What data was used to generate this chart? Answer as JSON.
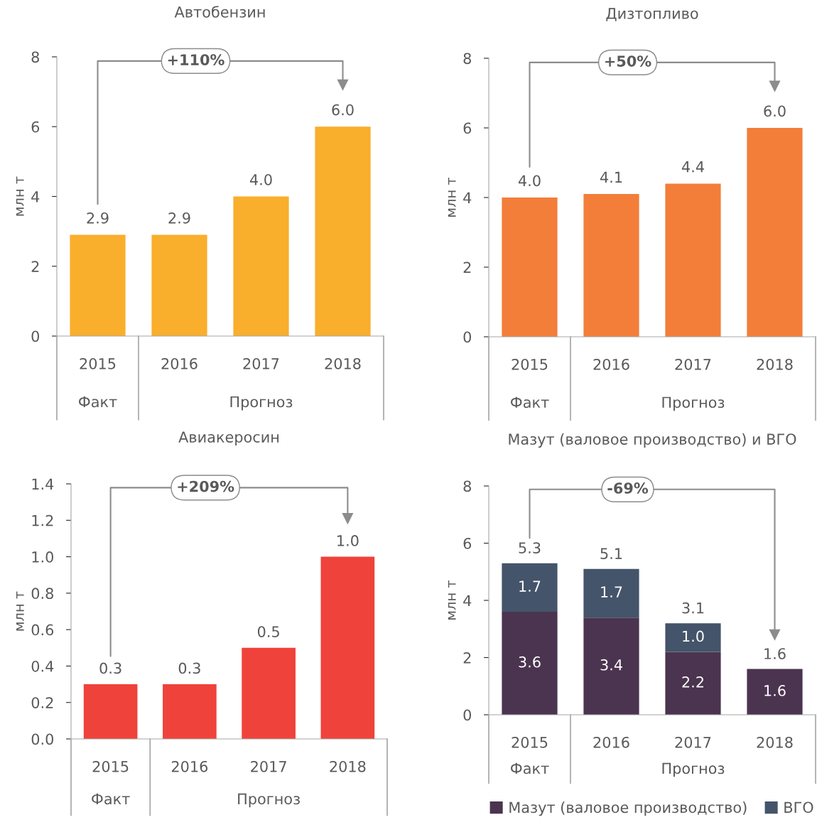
{
  "chart_data": [
    {
      "type": "bar",
      "title": "Автобензин",
      "ylabel": "млн т",
      "categories": [
        "2015",
        "2016",
        "2017",
        "2018"
      ],
      "values": [
        2.9,
        2.9,
        4.0,
        6.0
      ],
      "value_labels": [
        "2.9",
        "2.9",
        "4.0",
        "6.0"
      ],
      "color": "#f9ae2c",
      "ylim": [
        0,
        8
      ],
      "yticks": [
        0,
        2,
        4,
        6,
        8
      ],
      "grid": false,
      "annotations": [
        "+110%",
        "Факт",
        "Прогноз"
      ]
    },
    {
      "type": "bar",
      "title": "Дизтопливо",
      "ylabel": "млн т",
      "categories": [
        "2015",
        "2016",
        "2017",
        "2018"
      ],
      "values": [
        4.0,
        4.1,
        4.4,
        6.0
      ],
      "value_labels": [
        "4.0",
        "4.1",
        "4.4",
        "6.0"
      ],
      "color": "#f27e3a",
      "ylim": [
        0,
        8
      ],
      "yticks": [
        0,
        2,
        4,
        6,
        8
      ],
      "grid": false,
      "annotations": [
        "+50%",
        "Факт",
        "Прогноз"
      ]
    },
    {
      "type": "bar",
      "title": "Авиакеросин",
      "ylabel": "млн т",
      "categories": [
        "2015",
        "2016",
        "2017",
        "2018"
      ],
      "values": [
        0.3,
        0.3,
        0.5,
        1.0
      ],
      "value_labels": [
        "0.3",
        "0.3",
        "0.5",
        "1.0"
      ],
      "color": "#ef423b",
      "ylim": [
        0,
        1.4
      ],
      "yticks": [
        {
          "value": 0,
          "label": "0.0"
        },
        0.2,
        0.4,
        0.6,
        0.8,
        {
          "value": 1,
          "label": "1.0"
        },
        1.2,
        1.4
      ],
      "grid": false,
      "annotations": [
        "+209%",
        "Факт",
        "Прогноз"
      ]
    },
    {
      "type": "bar",
      "title": "Мазут (валовое производство) и ВГО",
      "ylabel": "млн т",
      "categories": [
        "2015",
        "2016",
        "2017",
        "2018"
      ],
      "stacked": true,
      "series": [
        {
          "name": "Мазут (валовое производство)",
          "color": "#4b344f",
          "values": [
            3.6,
            3.4,
            2.2,
            1.6
          ],
          "value_labels": [
            "3.6",
            "3.4",
            "2.2",
            "1.6"
          ]
        },
        {
          "name": "ВГО",
          "color": "#44546a",
          "values": [
            1.7,
            1.7,
            1.0,
            null
          ],
          "value_labels": [
            "1.7",
            "1.7",
            "1.0",
            null
          ]
        }
      ],
      "totals": [
        "5.3",
        "5.1",
        "3.1",
        "1.6"
      ],
      "ylim": [
        0,
        8
      ],
      "yticks": [
        0,
        2,
        4,
        6,
        8
      ],
      "grid": false,
      "legend": "bottom",
      "annotations": [
        "-69%",
        "Факт",
        "Прогноз"
      ]
    }
  ]
}
